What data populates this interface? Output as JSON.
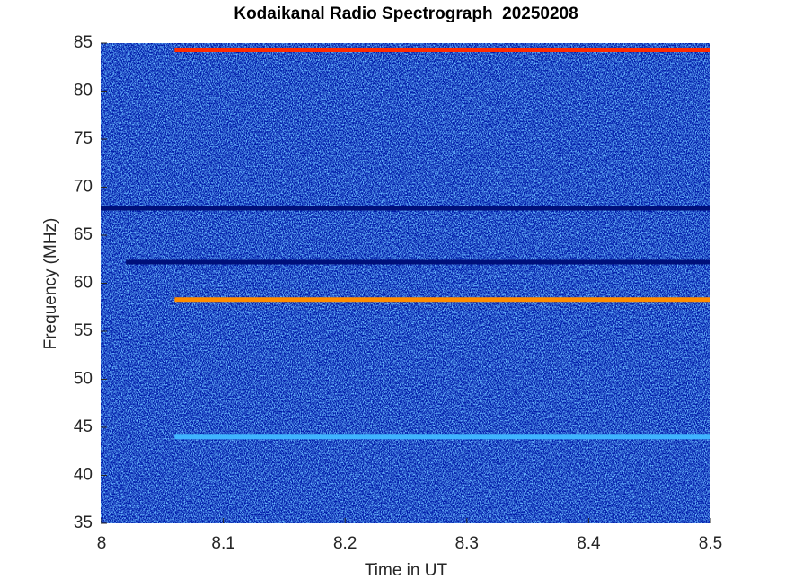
{
  "chart_data": {
    "type": "spectrogram",
    "title": "Kodaikanal Radio Spectrograph  20250208",
    "x_label": "Time in UT",
    "y_label": "Frequency (MHz)",
    "xlim": [
      8,
      8.5
    ],
    "xticks": [
      8,
      8.1,
      8.2,
      8.3,
      8.4,
      8.5
    ],
    "ylim": [
      35,
      85
    ],
    "yticks": [
      35,
      40,
      45,
      50,
      55,
      60,
      65,
      70,
      75,
      80,
      85
    ],
    "background_color": "#0019a8",
    "series": [
      {
        "color": "#00107a",
        "x": [
          8,
          8.5
        ],
        "values": [
          67.8,
          67.8
        ]
      },
      {
        "color": "#00107a",
        "x": [
          8.02,
          8.5
        ],
        "values": [
          62.2,
          62.2
        ]
      },
      {
        "color": "#3fb4ff",
        "x": [
          8.06,
          8.5
        ],
        "values": [
          44,
          44
        ]
      },
      {
        "color": "#ff8c00",
        "x": [
          8.06,
          8.5
        ],
        "values": [
          58.3,
          58.3
        ]
      },
      {
        "color": "#ff2a00",
        "x": [
          8.06,
          8.5
        ],
        "values": [
          84.3,
          84.3
        ]
      }
    ]
  }
}
